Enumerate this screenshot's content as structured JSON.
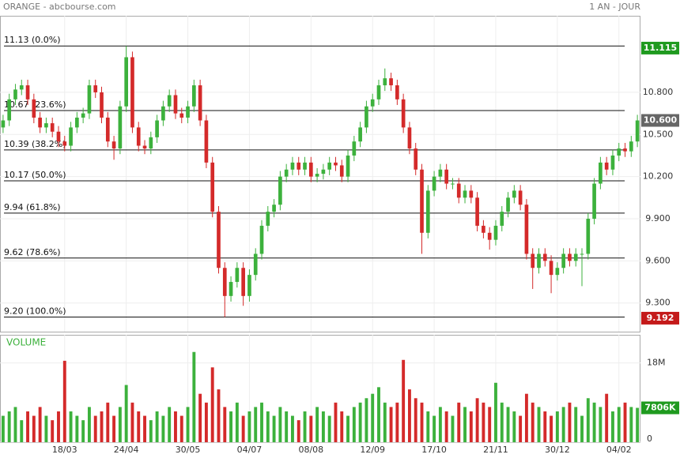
{
  "chart_data": {
    "type": "candlestick",
    "title": "ORANGE - abcbourse.com",
    "period": "1 AN - JOUR",
    "volume_title": "VOLUME",
    "categories": [
      null,
      null,
      null,
      null,
      null,
      null,
      null,
      null,
      null,
      null,
      "18/03",
      null,
      null,
      null,
      null,
      null,
      null,
      null,
      null,
      null,
      "24/04",
      null,
      null,
      null,
      null,
      null,
      null,
      null,
      null,
      null,
      "30/05",
      null,
      null,
      null,
      null,
      null,
      null,
      null,
      null,
      null,
      "04/07",
      null,
      null,
      null,
      null,
      null,
      null,
      null,
      null,
      null,
      "08/08",
      null,
      null,
      null,
      null,
      null,
      null,
      null,
      null,
      null,
      "12/09",
      null,
      null,
      null,
      null,
      null,
      null,
      null,
      null,
      null,
      "17/10",
      null,
      null,
      null,
      null,
      null,
      null,
      null,
      null,
      null,
      "21/11",
      null,
      null,
      null,
      null,
      null,
      null,
      null,
      null,
      null,
      "30/12",
      null,
      null,
      null,
      null,
      null,
      null,
      null,
      null,
      null,
      "04/02",
      null,
      null,
      null
    ],
    "ohlc": [
      [
        10.55,
        10.64,
        10.51,
        10.6
      ],
      [
        10.6,
        10.79,
        10.56,
        10.75
      ],
      [
        10.75,
        10.86,
        10.71,
        10.82
      ],
      [
        10.82,
        10.89,
        10.78,
        10.85
      ],
      [
        10.85,
        10.89,
        10.71,
        10.75
      ],
      [
        10.75,
        10.79,
        10.58,
        10.62
      ],
      [
        10.62,
        10.66,
        10.51,
        10.55
      ],
      [
        10.55,
        10.62,
        10.51,
        10.58
      ],
      [
        10.58,
        10.62,
        10.48,
        10.52
      ],
      [
        10.52,
        10.56,
        10.41,
        10.45
      ],
      [
        10.45,
        10.49,
        10.38,
        10.42
      ],
      [
        10.42,
        10.59,
        10.38,
        10.55
      ],
      [
        10.55,
        10.66,
        10.51,
        10.62
      ],
      [
        10.62,
        10.69,
        10.58,
        10.65
      ],
      [
        10.65,
        10.89,
        10.61,
        10.85
      ],
      [
        10.85,
        10.89,
        10.76,
        10.8
      ],
      [
        10.8,
        10.84,
        10.58,
        10.62
      ],
      [
        10.62,
        10.66,
        10.41,
        10.45
      ],
      [
        10.45,
        10.49,
        10.32,
        10.4
      ],
      [
        10.4,
        10.74,
        10.36,
        10.7
      ],
      [
        10.7,
        11.13,
        10.66,
        11.05
      ],
      [
        11.05,
        11.09,
        10.51,
        10.55
      ],
      [
        10.55,
        10.59,
        10.38,
        10.42
      ],
      [
        10.42,
        10.46,
        10.36,
        10.4
      ],
      [
        10.4,
        10.52,
        10.36,
        10.48
      ],
      [
        10.48,
        10.64,
        10.44,
        10.6
      ],
      [
        10.6,
        10.74,
        10.56,
        10.7
      ],
      [
        10.7,
        10.82,
        10.66,
        10.78
      ],
      [
        10.78,
        10.82,
        10.61,
        10.65
      ],
      [
        10.65,
        10.69,
        10.58,
        10.62
      ],
      [
        10.62,
        10.74,
        10.58,
        10.7
      ],
      [
        10.7,
        10.89,
        10.66,
        10.85
      ],
      [
        10.85,
        10.89,
        10.56,
        10.6
      ],
      [
        10.6,
        10.64,
        10.26,
        10.3
      ],
      [
        10.3,
        10.34,
        9.91,
        9.95
      ],
      [
        9.95,
        9.99,
        9.51,
        9.55
      ],
      [
        9.55,
        9.59,
        9.2,
        9.35
      ],
      [
        9.35,
        9.49,
        9.31,
        9.45
      ],
      [
        9.45,
        9.59,
        9.41,
        9.55
      ],
      [
        9.55,
        9.59,
        9.28,
        9.35
      ],
      [
        9.35,
        9.54,
        9.31,
        9.5
      ],
      [
        9.5,
        9.69,
        9.46,
        9.65
      ],
      [
        9.65,
        9.89,
        9.61,
        9.85
      ],
      [
        9.85,
        9.99,
        9.81,
        9.95
      ],
      [
        9.95,
        10.04,
        9.91,
        10.0
      ],
      [
        10.0,
        10.24,
        9.96,
        10.2
      ],
      [
        10.2,
        10.29,
        10.16,
        10.25
      ],
      [
        10.25,
        10.34,
        10.21,
        10.3
      ],
      [
        10.3,
        10.34,
        10.21,
        10.25
      ],
      [
        10.25,
        10.34,
        10.21,
        10.3
      ],
      [
        10.3,
        10.34,
        10.16,
        10.2
      ],
      [
        10.2,
        10.26,
        10.16,
        10.22
      ],
      [
        10.22,
        10.29,
        10.18,
        10.25
      ],
      [
        10.25,
        10.34,
        10.21,
        10.3
      ],
      [
        10.3,
        10.34,
        10.24,
        10.28
      ],
      [
        10.28,
        10.32,
        10.16,
        10.2
      ],
      [
        10.2,
        10.39,
        10.16,
        10.35
      ],
      [
        10.35,
        10.49,
        10.31,
        10.45
      ],
      [
        10.45,
        10.59,
        10.41,
        10.55
      ],
      [
        10.55,
        10.74,
        10.51,
        10.7
      ],
      [
        10.7,
        10.79,
        10.66,
        10.75
      ],
      [
        10.75,
        10.89,
        10.71,
        10.85
      ],
      [
        10.85,
        10.97,
        10.81,
        10.9
      ],
      [
        10.9,
        10.94,
        10.81,
        10.85
      ],
      [
        10.85,
        10.89,
        10.71,
        10.75
      ],
      [
        10.75,
        10.79,
        10.51,
        10.55
      ],
      [
        10.55,
        10.59,
        10.36,
        10.4
      ],
      [
        10.4,
        10.44,
        10.21,
        10.25
      ],
      [
        10.25,
        10.29,
        9.65,
        9.8
      ],
      [
        9.8,
        10.14,
        9.76,
        10.1
      ],
      [
        10.1,
        10.24,
        10.06,
        10.2
      ],
      [
        10.2,
        10.29,
        10.16,
        10.25
      ],
      [
        10.25,
        10.29,
        10.11,
        10.15
      ],
      [
        10.15,
        10.19,
        10.11,
        10.15
      ],
      [
        10.15,
        10.19,
        10.01,
        10.05
      ],
      [
        10.05,
        10.14,
        10.01,
        10.1
      ],
      [
        10.1,
        10.14,
        10.01,
        10.05
      ],
      [
        10.05,
        10.09,
        9.81,
        9.85
      ],
      [
        9.85,
        9.89,
        9.76,
        9.8
      ],
      [
        9.8,
        9.84,
        9.68,
        9.75
      ],
      [
        9.75,
        9.89,
        9.71,
        9.85
      ],
      [
        9.85,
        9.99,
        9.81,
        9.95
      ],
      [
        9.95,
        10.09,
        9.91,
        10.05
      ],
      [
        10.05,
        10.14,
        10.01,
        10.1
      ],
      [
        10.1,
        10.14,
        9.96,
        10.0
      ],
      [
        10.0,
        10.04,
        9.61,
        9.65
      ],
      [
        9.65,
        9.69,
        9.4,
        9.55
      ],
      [
        9.55,
        9.69,
        9.51,
        9.65
      ],
      [
        9.65,
        9.69,
        9.56,
        9.6
      ],
      [
        9.6,
        9.64,
        9.37,
        9.5
      ],
      [
        9.5,
        9.59,
        9.46,
        9.55
      ],
      [
        9.55,
        9.69,
        9.51,
        9.65
      ],
      [
        9.65,
        9.69,
        9.56,
        9.6
      ],
      [
        9.6,
        9.69,
        9.56,
        9.65
      ],
      [
        9.65,
        9.69,
        9.42,
        9.65
      ],
      [
        9.65,
        9.94,
        9.61,
        9.9
      ],
      [
        9.9,
        10.19,
        9.86,
        10.15
      ],
      [
        10.15,
        10.34,
        10.11,
        10.3
      ],
      [
        10.3,
        10.34,
        10.21,
        10.25
      ],
      [
        10.25,
        10.39,
        10.21,
        10.35
      ],
      [
        10.35,
        10.44,
        10.31,
        10.4
      ],
      [
        10.4,
        10.44,
        10.34,
        10.38
      ],
      [
        10.38,
        10.49,
        10.34,
        10.45
      ],
      [
        10.45,
        10.64,
        10.41,
        10.6
      ]
    ],
    "volume": [
      6,
      7,
      8,
      5,
      7,
      6,
      8,
      6,
      5,
      7,
      18.5,
      7,
      6,
      5,
      8,
      6,
      7,
      9,
      6,
      8,
      13,
      9,
      7,
      6,
      5,
      7,
      6,
      8,
      7,
      6,
      8,
      20.5,
      11,
      9,
      17,
      12,
      8,
      7,
      9,
      6,
      7,
      8,
      9,
      7,
      6,
      8,
      7,
      6,
      5,
      7,
      6,
      8,
      7,
      6,
      9,
      7,
      6,
      8,
      9,
      10,
      11,
      12.5,
      9,
      8,
      9,
      18.7,
      12,
      10,
      9,
      7,
      6,
      8,
      7,
      6,
      9,
      8,
      7,
      10,
      9,
      8,
      13.5,
      9,
      8,
      7,
      6,
      11,
      9,
      8,
      7,
      6,
      7,
      8,
      9,
      8,
      6,
      10,
      9,
      8,
      11,
      7,
      8,
      9,
      8,
      7.806
    ],
    "up_color": "#3cb13c",
    "down_color": "#d42a2a",
    "ylim": [
      9.096,
      11.345
    ],
    "yticks": [
      {
        "value": 10.8,
        "label": "10.800"
      },
      {
        "value": 10.5,
        "label": "10.500"
      },
      {
        "value": 10.2,
        "label": "10.200"
      },
      {
        "value": 9.9,
        "label": "9.900"
      },
      {
        "value": 9.6,
        "label": "9.600"
      },
      {
        "value": 9.3,
        "label": "9.300"
      }
    ],
    "vlim": [
      0,
      24.4
    ],
    "vticks": [
      {
        "value": 18,
        "label": "18M"
      },
      0
    ],
    "fib_levels": [
      {
        "value": 11.13,
        "label": "11.13  (0.0%)"
      },
      {
        "value": 10.67,
        "label": "10.67  (23.6%)"
      },
      {
        "value": 10.39,
        "label": "10.39  (38.2%)"
      },
      {
        "value": 10.17,
        "label": "10.17  (50.0%)"
      },
      {
        "value": 9.94,
        "label": "9.94  (61.8%)"
      },
      {
        "value": 9.62,
        "label": "9.62  (78.6%)"
      },
      {
        "value": 9.2,
        "label": "9.20  (100.0%)"
      }
    ],
    "markers": [
      {
        "value": 11.115,
        "label": "11.115",
        "color": "#1f9a1f"
      },
      {
        "value": 10.6,
        "label": "10.600",
        "color": "#666666"
      },
      {
        "value": 9.192,
        "label": "9.192",
        "color": "#c41a1a"
      }
    ],
    "volume_marker": {
      "value": 7.806,
      "label": "7806K",
      "color": "#1f9a1f"
    }
  }
}
